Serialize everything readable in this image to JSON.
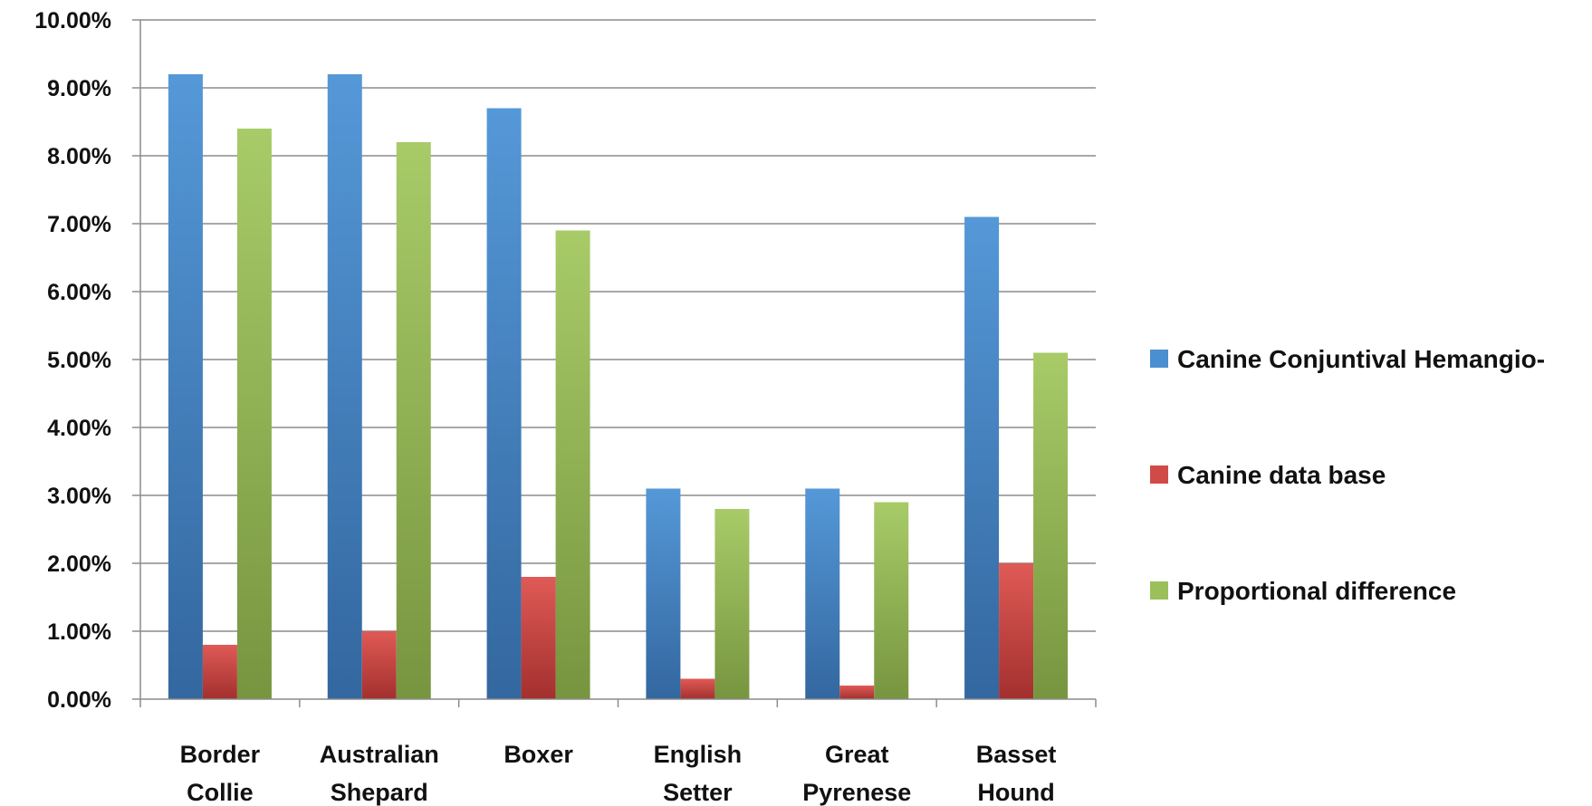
{
  "chart_data": {
    "type": "bar",
    "categories": [
      [
        "Border",
        "Collie"
      ],
      [
        "Australian",
        "Shepard"
      ],
      [
        "Boxer"
      ],
      [
        "English",
        "Setter"
      ],
      [
        "Great",
        "Pyrenese"
      ],
      [
        "Basset",
        "Hound"
      ]
    ],
    "series": [
      {
        "name": "Canine Conjuntival Hemangio-",
        "color": "#4a8fd0",
        "values": [
          0.092,
          0.092,
          0.087,
          0.031,
          0.031,
          0.071
        ]
      },
      {
        "name": "Canine data base",
        "color": "#d04b48",
        "values": [
          0.008,
          0.01,
          0.018,
          0.003,
          0.002,
          0.02
        ]
      },
      {
        "name": "Proportional difference",
        "color": "#9bc05a",
        "values": [
          0.084,
          0.082,
          0.069,
          0.028,
          0.029,
          0.051
        ]
      }
    ],
    "ylim": [
      0,
      0.1
    ],
    "yticks": [
      "0.00%",
      "1.00%",
      "2.00%",
      "3.00%",
      "4.00%",
      "5.00%",
      "6.00%",
      "7.00%",
      "8.00%",
      "9.00%",
      "10.00%"
    ],
    "grid": true,
    "legend_position": "right"
  }
}
